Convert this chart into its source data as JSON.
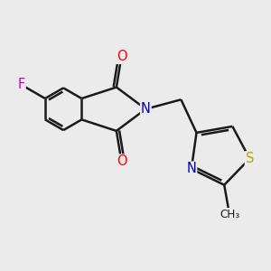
{
  "background_color": "#ebebeb",
  "bond_color": "#1a1a1a",
  "atom_colors": {
    "O": "#ff0000",
    "N": "#0000cc",
    "F": "#cc00cc",
    "S": "#aaaa00",
    "C": "#1a1a1a"
  },
  "bond_lw": 1.8,
  "font_size": 10.5
}
